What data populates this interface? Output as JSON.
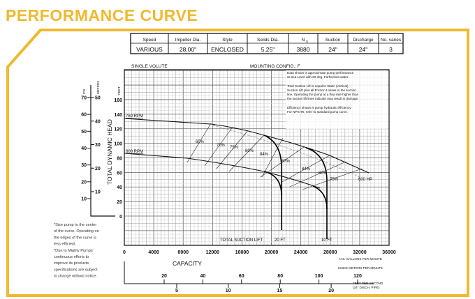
{
  "title": "PERFORMANCE CURVE",
  "colors": {
    "brand_yellow": "#f0b92e",
    "grid_minor": "#c8c8c8",
    "grid_major": "#777777"
  },
  "spec_table": {
    "headers": [
      "Speed",
      "Impeller Dia.",
      "Style",
      "Solids Dia.",
      "N",
      "Suction",
      "Discharge",
      "No. vanes"
    ],
    "ns_subscript": "S",
    "values": [
      "VARIOUS",
      "28.00\"",
      "ENCLOSED",
      "5.25\"",
      "3880",
      "24\"",
      "24\"",
      "3"
    ]
  },
  "chart_labels": {
    "volute": "SINGLE VOLUTE",
    "mounting": "MOUNTING CONFIG.:  F",
    "info": [
      "Data shown is approximate pump performance",
      "at Sea Level with 60 deg. Farhenheit water.",
      "Total Suction Lift is equal to Static (vertical)",
      "Suction Lift plus all Friction Losses in the suction",
      "line. Operating the pump at a flow rate higher than",
      "the suction lift lines indicate may result in damage.",
      "Efficiency shown is pump hydraulic efficiency.",
      "For NPSHR, refer to standard pump curve."
    ],
    "total_suction_lift": "TOTAL SUCTION LIFT",
    "lift_20": "20 FT",
    "lift_10": "10 FT",
    "hp_label": "600 HP"
  },
  "chart_data": {
    "type": "line",
    "title": "PERFORMANCE CURVE",
    "xlabel": "U.S. GALLONS PER MINUTE",
    "ylabel": "TOTAL DYNAMIC HEAD",
    "y_unit": "FEET",
    "xlim": [
      0,
      36000
    ],
    "ylim": [
      -40,
      200
    ],
    "grid": true,
    "x_ticks": [
      "0",
      "4000",
      "8000",
      "12000",
      "16000",
      "20000",
      "24000",
      "28000",
      "32000",
      "36000"
    ],
    "y_ticks": [
      "0",
      "20",
      "40",
      "60",
      "80",
      "100",
      "120",
      "140",
      "160"
    ],
    "series": [
      {
        "name": "750 RPM",
        "x": [
          0,
          12000,
          17000,
          20000,
          24500,
          28000,
          33000
        ],
        "y": [
          135,
          128,
          118,
          112,
          96,
          84,
          60
        ]
      },
      {
        "name": "600 RPM",
        "x": [
          0,
          8000,
          15000,
          19000,
          25000,
          26500
        ],
        "y": [
          86,
          80,
          70,
          62,
          42,
          38
        ]
      }
    ],
    "efficiency_labels": [
      "60%",
      "70%",
      "75%",
      "80%",
      "84%",
      "87%",
      "84%",
      "80%",
      "75%"
    ],
    "psi_axis": {
      "label": "PSI",
      "ticks": [
        "10",
        "20",
        "30",
        "40",
        "50",
        "60",
        "70"
      ]
    },
    "meters_axis": {
      "label": "METERS",
      "ticks": [
        "10",
        "20",
        "30",
        "40",
        "50"
      ]
    },
    "capacity": {
      "label": "CAPACITY",
      "cubic_label": "CUBIC METERS PER MINUTE",
      "cubic_ticks": [
        "20",
        "40",
        "60",
        "80",
        "100",
        "120"
      ],
      "fps_label": "FEET PER SECOND",
      "fps_sub": "(24\" DISCH. PIPE)",
      "fps_ticks": [
        "5",
        "10",
        "15",
        "20"
      ]
    }
  },
  "notes": [
    "*Size pump to the center",
    "of the curve. Operating on",
    "the edges of the curve is",
    "less efficient.",
    "*Due to Mighty Pumps'",
    "continuous efforts to",
    "improve its products,",
    "specifications are subject",
    "to change without notice."
  ]
}
